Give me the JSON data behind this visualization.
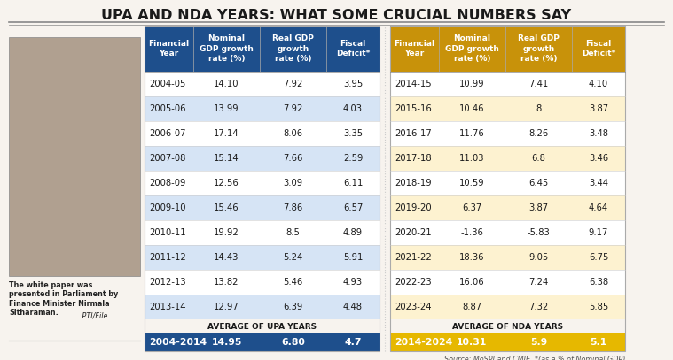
{
  "title": "UPA AND NDA YEARS: WHAT SOME CRUCIAL NUMBERS SAY",
  "title_fontsize": 11.5,
  "header_bg_upa": "#1e4f8c",
  "header_bg_nda": "#c8920a",
  "header_text_color_upa": "#ffffff",
  "header_text_color_nda": "#ffffff",
  "avg_row_bg_upa": "#1e4f8c",
  "avg_row_bg_nda": "#e6b800",
  "avg_row_text_color": "#ffffff",
  "col_headers": [
    "Financial\nYear",
    "Nominal\nGDP growth\nrate (%)",
    "Real GDP\ngrowth\nrate (%)",
    "Fiscal\nDeficit*"
  ],
  "upa_data": [
    [
      "2004-05",
      "14.10",
      "7.92",
      "3.95"
    ],
    [
      "2005-06",
      "13.99",
      "7.92",
      "4.03"
    ],
    [
      "2006-07",
      "17.14",
      "8.06",
      "3.35"
    ],
    [
      "2007-08",
      "15.14",
      "7.66",
      "2.59"
    ],
    [
      "2008-09",
      "12.56",
      "3.09",
      "6.11"
    ],
    [
      "2009-10",
      "15.46",
      "7.86",
      "6.57"
    ],
    [
      "2010-11",
      "19.92",
      "8.5",
      "4.89"
    ],
    [
      "2011-12",
      "14.43",
      "5.24",
      "5.91"
    ],
    [
      "2012-13",
      "13.82",
      "5.46",
      "4.93"
    ],
    [
      "2013-14",
      "12.97",
      "6.39",
      "4.48"
    ]
  ],
  "upa_avg": [
    "2004-2014",
    "14.95",
    "6.80",
    "4.7"
  ],
  "upa_avg_label": "AVERAGE OF UPA YEARS",
  "nda_data": [
    [
      "2014-15",
      "10.99",
      "7.41",
      "4.10"
    ],
    [
      "2015-16",
      "10.46",
      "8",
      "3.87"
    ],
    [
      "2016-17",
      "11.76",
      "8.26",
      "3.48"
    ],
    [
      "2017-18",
      "11.03",
      "6.8",
      "3.46"
    ],
    [
      "2018-19",
      "10.59",
      "6.45",
      "3.44"
    ],
    [
      "2019-20",
      "6.37",
      "3.87",
      "4.64"
    ],
    [
      "2020-21",
      "-1.36",
      "-5.83",
      "9.17"
    ],
    [
      "2021-22",
      "18.36",
      "9.05",
      "6.75"
    ],
    [
      "2022-23",
      "16.06",
      "7.24",
      "6.38"
    ],
    [
      "2023-24",
      "8.87",
      "7.32",
      "5.85"
    ]
  ],
  "nda_avg": [
    "2014-2024",
    "10.31",
    "5.9",
    "5.1"
  ],
  "nda_avg_label": "AVERAGE OF NDA YEARS",
  "source_text": "Source: MoSPI and CMIE, *(as a % of Nominal GDP)",
  "caption_bold": "The white paper was\npresented in Parliament by\nFinance Minister Nirmala\nSitharaman.",
  "caption_italic": " PTI/File",
  "bg_color": "#f7f3ee",
  "upa_row_colors": [
    "#ffffff",
    "#d6e4f5"
  ],
  "nda_row_colors": [
    "#ffffff",
    "#fdf2d0"
  ],
  "border_color": "#aaaaaa",
  "title_color": "#1a1a1a"
}
